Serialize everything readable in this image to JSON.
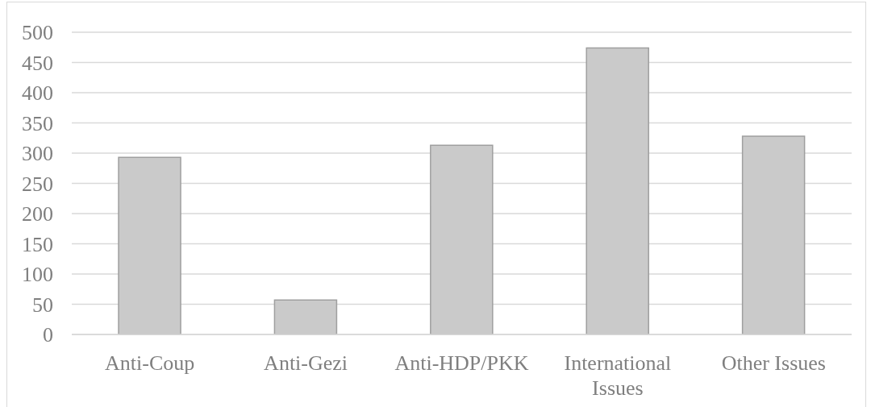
{
  "chart_data": {
    "type": "bar",
    "categories": [
      "Anti-Coup",
      "Anti-Gezi",
      "Anti-HDP/PKK",
      "International Issues",
      "Other Issues"
    ],
    "values": [
      293,
      57,
      313,
      474,
      328
    ],
    "color": "#cacaca",
    "ylim": [
      0,
      500
    ],
    "yticks": [
      0,
      50,
      100,
      150,
      200,
      250,
      300,
      350,
      400,
      450,
      500
    ],
    "grid": "y"
  }
}
